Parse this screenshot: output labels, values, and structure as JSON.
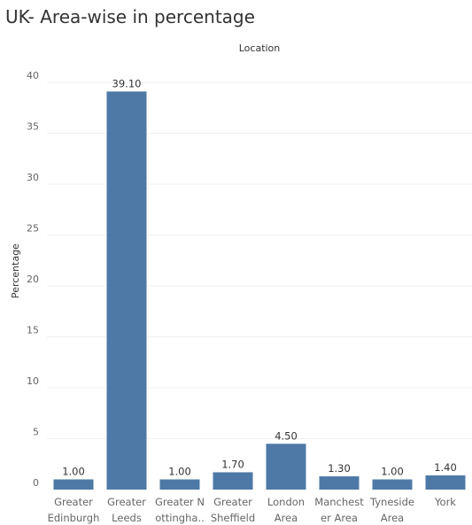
{
  "chart_data": {
    "type": "bar",
    "title": "UK- Area-wise in percentage",
    "column_header": "Location",
    "ylabel": "Percentage",
    "xlabel": "",
    "ylim": [
      0,
      42
    ],
    "yticks": [
      "0",
      "5",
      "10",
      "15",
      "20",
      "25",
      "30",
      "35",
      "40"
    ],
    "grid": true,
    "bar_color": "#4e79a7",
    "categories": [
      {
        "lines": [
          "Greater",
          "Edinburgh"
        ],
        "value": 1.0,
        "label": "1.00"
      },
      {
        "lines": [
          "Greater",
          "Leeds"
        ],
        "value": 39.1,
        "label": "39.10"
      },
      {
        "lines": [
          "Greater N",
          "ottingha.."
        ],
        "value": 1.0,
        "label": "1.00"
      },
      {
        "lines": [
          "Greater",
          "Sheffield"
        ],
        "value": 1.7,
        "label": "1.70"
      },
      {
        "lines": [
          "London",
          "Area"
        ],
        "value": 4.5,
        "label": "4.50"
      },
      {
        "lines": [
          "Manchest",
          "er Area"
        ],
        "value": 1.3,
        "label": "1.30"
      },
      {
        "lines": [
          "Tyneside",
          "Area"
        ],
        "value": 1.0,
        "label": "1.00"
      },
      {
        "lines": [
          "York"
        ],
        "value": 1.4,
        "label": "1.40"
      }
    ]
  }
}
